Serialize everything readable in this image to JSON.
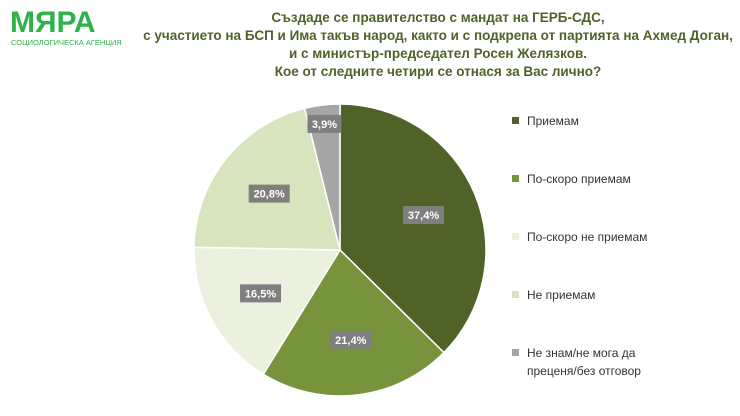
{
  "logo": {
    "name": "МЯРА",
    "tagline": "СОЦИОЛОГИЧЕСКА АГЕНЦИЯ"
  },
  "chart_data": {
    "type": "pie",
    "title": [
      "Създаде се правителство с мандат на ГЕРБ-СДС,",
      "с участието на БСП и Има такъв народ, както и с подкрепа от партията на Ахмед Доган,",
      "и с министър-председател Росен Желязков.",
      "Кое от следните четири се отнася за Вас лично?"
    ],
    "categories": [
      "Приемам",
      "По-скоро приемам",
      "По-скоро не приемам",
      "Не приемам",
      "Не знам/не мога да преценя/без отговор"
    ],
    "values": [
      37.4,
      21.4,
      16.5,
      20.8,
      3.9
    ],
    "value_labels": [
      "37,4%",
      "21,4%",
      "16,5%",
      "20,8%",
      "3,9%"
    ],
    "colors": [
      "#4f6228",
      "#77933c",
      "#ebf1de",
      "#d7e4bd",
      "#a6a6a6"
    ],
    "legend": "right"
  }
}
